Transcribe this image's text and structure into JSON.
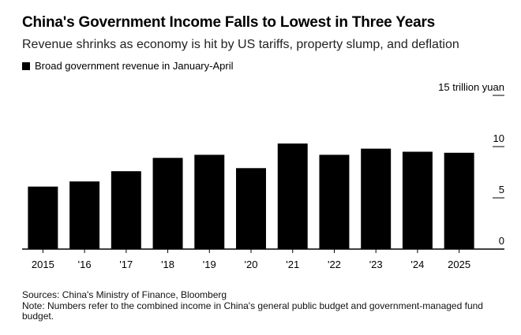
{
  "chart_data": {
    "type": "bar",
    "title": "China's Government Income Falls to Lowest in Three Years",
    "subtitle": "Revenue shrinks as economy is hit by US tariffs, property slump, and deflation",
    "legend": [
      "Broad government revenue in January-April"
    ],
    "legend_position": "top-left",
    "categories": [
      "2015",
      "'16",
      "'17",
      "'18",
      "'19",
      "'20",
      "'21",
      "'22",
      "'23",
      "'24",
      "2025"
    ],
    "series": [
      {
        "name": "Broad government revenue in January-April",
        "values": [
          6.1,
          6.6,
          7.6,
          8.9,
          9.2,
          7.9,
          10.3,
          9.2,
          9.8,
          9.5,
          9.4
        ]
      }
    ],
    "ylim": [
      0,
      15
    ],
    "yticks": [
      0,
      5,
      10,
      15
    ],
    "ytick_labels": [
      "0",
      "5",
      "10",
      "15 trillion yuan"
    ],
    "y_axis_position": "right",
    "bar_color": "#000000",
    "grid": false
  },
  "sources": "Sources: China's Ministry of Finance, Bloomberg",
  "note": "Note: Numbers refer to the combined income in China's general public budget and government-managed fund budget."
}
